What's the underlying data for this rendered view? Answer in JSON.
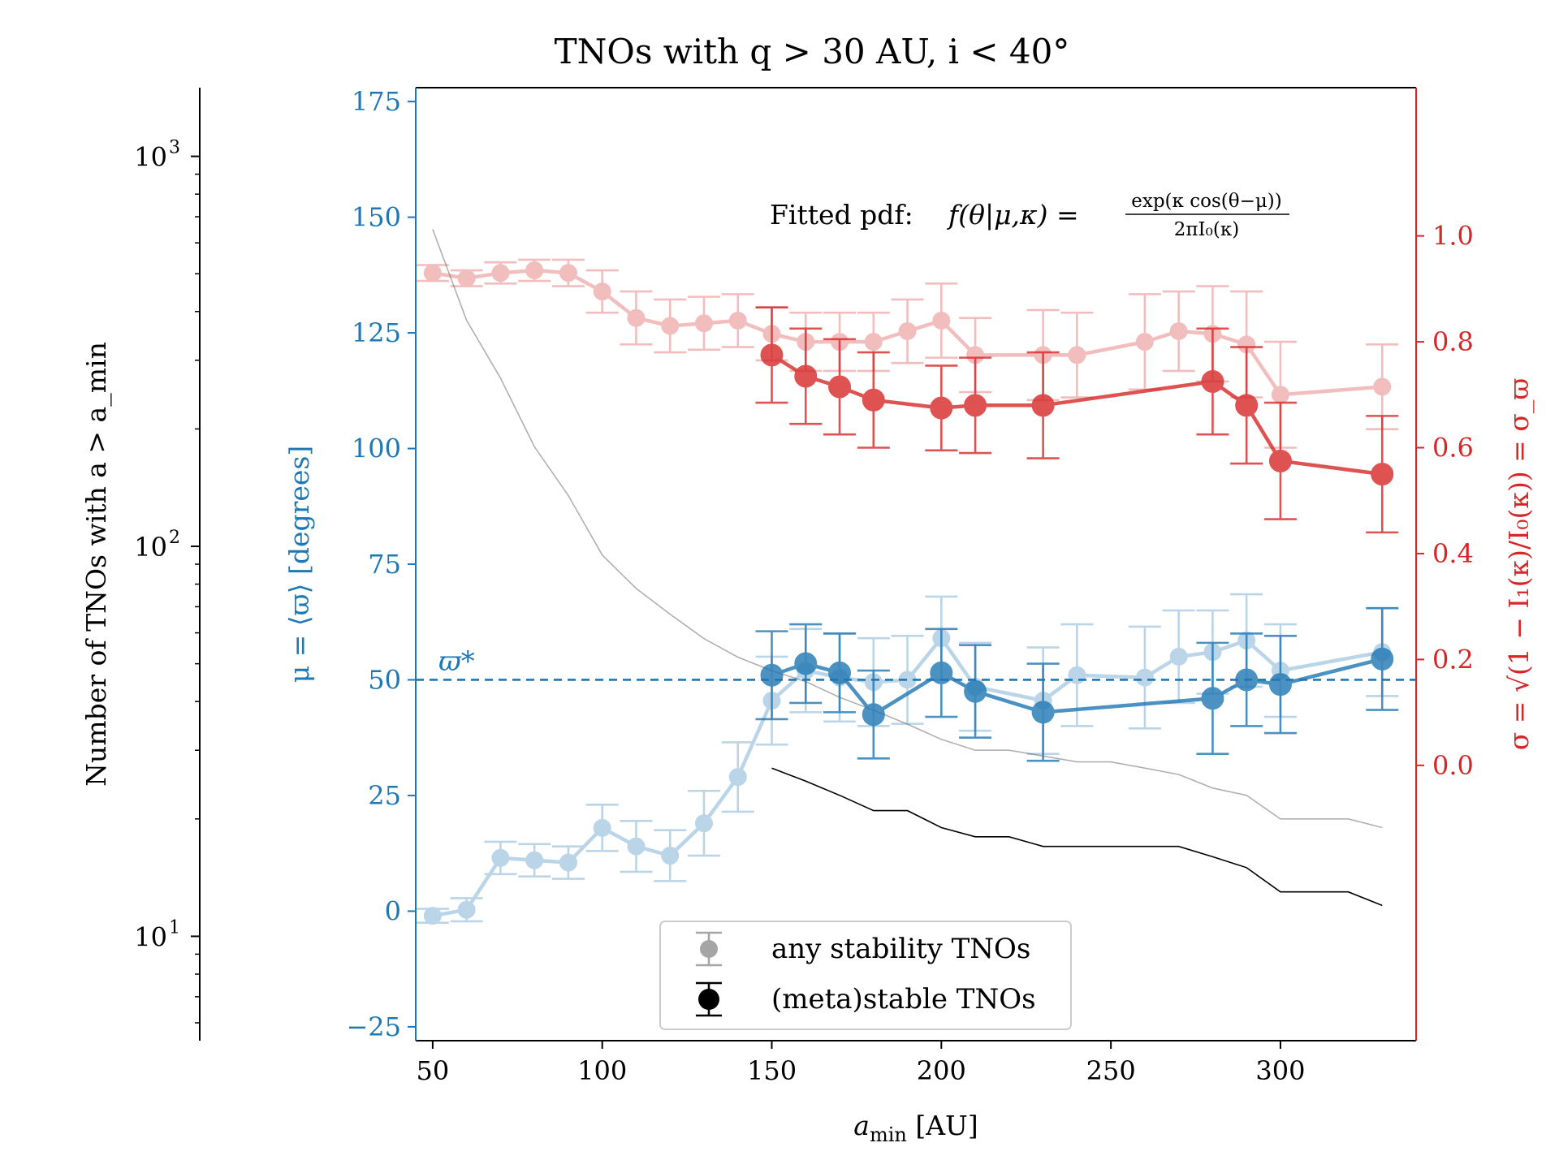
{
  "chart_data": {
    "type": "line",
    "title": "TNOs with q > 30 AU, i < 40°",
    "xlabel": "a_min [AU]",
    "xlabel_main": "a",
    "xlabel_sub": "min",
    "xlabel_unit": " [AU]",
    "xlim": [
      45,
      340
    ],
    "xticks": [
      50,
      100,
      150,
      200,
      250,
      300
    ],
    "ylabel_left_counts": "Number of TNOs with a > a_min",
    "ylabel_mu": "μ = ⟨ϖ⟩ [degrees]",
    "ylabel_sigma": "σ = √(1 − I₁(κ)/I₀(κ)) = σ_ϖ",
    "ylim_mu": [
      -28,
      178
    ],
    "yticks_mu": [
      -25,
      0,
      25,
      50,
      75,
      100,
      125,
      150,
      175
    ],
    "ylim_sigma": [
      -0.52,
      1.28
    ],
    "yticks_sigma": [
      0.0,
      0.2,
      0.4,
      0.6,
      0.8,
      1.0
    ],
    "ylim_counts": [
      5.4,
      1500
    ],
    "yticks_counts_major": [
      {
        "value": 10,
        "base": "10",
        "exp": "1"
      },
      {
        "value": 100,
        "base": "10",
        "exp": "2"
      },
      {
        "value": 1000,
        "base": "10",
        "exp": "3"
      }
    ],
    "annotation_pdf": "Fitted pdf: f(θ|μ,κ) = exp(κ cos(θ−μ)) / 2πI₀(κ)",
    "pdf_prefix": "Fitted pdf:",
    "pdf_lhs": "f(θ|μ,κ) =",
    "pdf_num": "exp(κ cos(θ−μ))",
    "pdf_den": "2πI₀(κ)",
    "varpi_star_label": "ϖ*",
    "varpi_star_value": 50,
    "legend": [
      {
        "label": "any stability TNOs",
        "style": "faded"
      },
      {
        "label": "(meta)stable TNOs",
        "style": "solid"
      }
    ],
    "counts_any": {
      "x": [
        50,
        60,
        70,
        80,
        90,
        100,
        110,
        120,
        130,
        140,
        150,
        160,
        170,
        180,
        190,
        200,
        210,
        220,
        230,
        240,
        250,
        260,
        270,
        280,
        290,
        300,
        310,
        320,
        330
      ],
      "y": [
        650,
        380,
        270,
        180,
        135,
        95,
        78,
        67,
        58,
        52,
        48,
        45,
        41,
        38,
        35,
        32,
        30,
        30,
        29,
        28,
        28,
        27,
        26,
        24,
        23,
        20,
        20,
        20,
        19
      ]
    },
    "counts_stable": {
      "x": [
        150,
        160,
        170,
        180,
        190,
        200,
        210,
        220,
        230,
        240,
        250,
        260,
        270,
        280,
        290,
        300,
        310,
        320,
        330
      ],
      "y": [
        27,
        25,
        23,
        21,
        21,
        19,
        18,
        18,
        17,
        17,
        17,
        17,
        17,
        16,
        15,
        13,
        13,
        13,
        12
      ]
    },
    "series": [
      {
        "name": "μ any stability TNOs",
        "axis": "mu",
        "color": "#1f77b4",
        "style": "faded",
        "x": [
          50,
          60,
          70,
          80,
          90,
          100,
          110,
          120,
          130,
          140,
          150,
          160,
          170,
          180,
          190,
          200,
          210,
          230,
          240,
          260,
          270,
          280,
          290,
          300,
          330
        ],
        "y": [
          -1,
          0.3,
          11.5,
          11,
          10.5,
          18,
          14,
          12,
          19,
          29,
          45.5,
          52,
          50.5,
          49.5,
          50,
          59,
          48.5,
          45.5,
          51,
          50.5,
          55,
          56,
          58.5,
          52,
          56
        ],
        "err": [
          1.5,
          2.5,
          3.5,
          3.5,
          3.5,
          5,
          5.5,
          5.5,
          7,
          7.5,
          9.5,
          9,
          9.5,
          9.5,
          9.5,
          9,
          9.5,
          11.5,
          11,
          11,
          10,
          9,
          10,
          10,
          9.5
        ]
      },
      {
        "name": "μ (meta)stable TNOs",
        "axis": "mu",
        "color": "#1f77b4",
        "style": "solid",
        "x": [
          150,
          160,
          170,
          180,
          200,
          210,
          230,
          280,
          290,
          300,
          330
        ],
        "y": [
          51,
          53.5,
          51.5,
          42.5,
          51.5,
          47.5,
          43,
          46,
          50,
          49,
          54.5
        ],
        "err": [
          9.5,
          8.5,
          8.5,
          9.5,
          9.5,
          10,
          10.5,
          12,
          10,
          10.5,
          11
        ]
      },
      {
        "name": "σ any stability TNOs",
        "axis": "sigma",
        "color": "#d62728",
        "style": "faded",
        "x": [
          50,
          60,
          70,
          80,
          90,
          100,
          110,
          120,
          130,
          140,
          150,
          160,
          170,
          180,
          190,
          200,
          210,
          230,
          240,
          260,
          270,
          280,
          290,
          300,
          330
        ],
        "y": [
          0.93,
          0.92,
          0.93,
          0.935,
          0.93,
          0.895,
          0.845,
          0.83,
          0.835,
          0.84,
          0.815,
          0.8,
          0.8,
          0.8,
          0.82,
          0.84,
          0.775,
          0.775,
          0.775,
          0.8,
          0.82,
          0.815,
          0.795,
          0.7,
          0.715
        ],
        "err": [
          0.015,
          0.015,
          0.02,
          0.02,
          0.025,
          0.04,
          0.05,
          0.05,
          0.05,
          0.05,
          0.05,
          0.055,
          0.055,
          0.055,
          0.06,
          0.07,
          0.07,
          0.085,
          0.08,
          0.09,
          0.075,
          0.09,
          0.1,
          0.1,
          0.08
        ]
      },
      {
        "name": "σ (meta)stable TNOs",
        "axis": "sigma",
        "color": "#d62728",
        "style": "solid",
        "x": [
          150,
          160,
          170,
          180,
          200,
          210,
          230,
          280,
          290,
          300,
          330
        ],
        "y": [
          0.775,
          0.735,
          0.715,
          0.69,
          0.675,
          0.68,
          0.68,
          0.725,
          0.68,
          0.575,
          0.55
        ],
        "err": [
          0.09,
          0.09,
          0.09,
          0.09,
          0.08,
          0.09,
          0.1,
          0.1,
          0.11,
          0.11,
          0.11
        ]
      }
    ]
  }
}
